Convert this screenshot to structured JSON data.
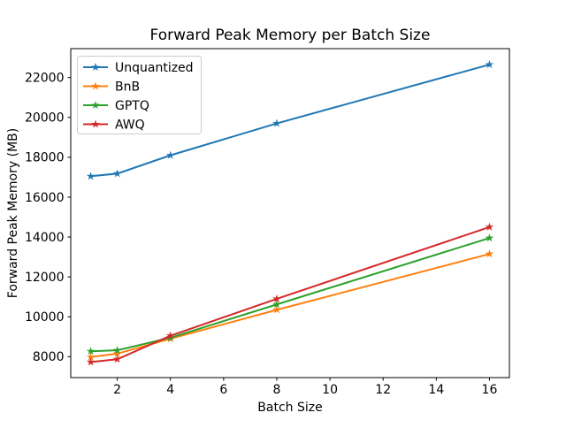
{
  "chart_data": {
    "type": "line",
    "title": "Forward Peak Memory per Batch Size",
    "xlabel": "Batch Size",
    "ylabel": "Forward Peak Memory (MB)",
    "x": [
      1,
      2,
      4,
      8,
      16
    ],
    "series": [
      {
        "name": "Unquantized",
        "color": "#1f77b4",
        "marker": "star",
        "values": [
          17050,
          17180,
          18100,
          19700,
          22650
        ]
      },
      {
        "name": "BnB",
        "color": "#ff7f0e",
        "marker": "star",
        "values": [
          7980,
          8150,
          8900,
          10350,
          13150
        ]
      },
      {
        "name": "GPTQ",
        "color": "#2ca02c",
        "marker": "star",
        "values": [
          8270,
          8320,
          8950,
          10620,
          13950
        ]
      },
      {
        "name": "AWQ",
        "color": "#d62728",
        "marker": "star",
        "values": [
          7730,
          7870,
          9050,
          10900,
          14500
        ]
      }
    ],
    "xticks": [
      2,
      4,
      6,
      8,
      10,
      12,
      14,
      16
    ],
    "yticks": [
      8000,
      10000,
      12000,
      14000,
      16000,
      18000,
      20000,
      22000
    ],
    "xlim": [
      0.25,
      16.75
    ],
    "ylim": [
      6950,
      23450
    ],
    "grid": false,
    "legend_position": "upper left",
    "axes_color": "#000000",
    "background_color": "#ffffff"
  }
}
